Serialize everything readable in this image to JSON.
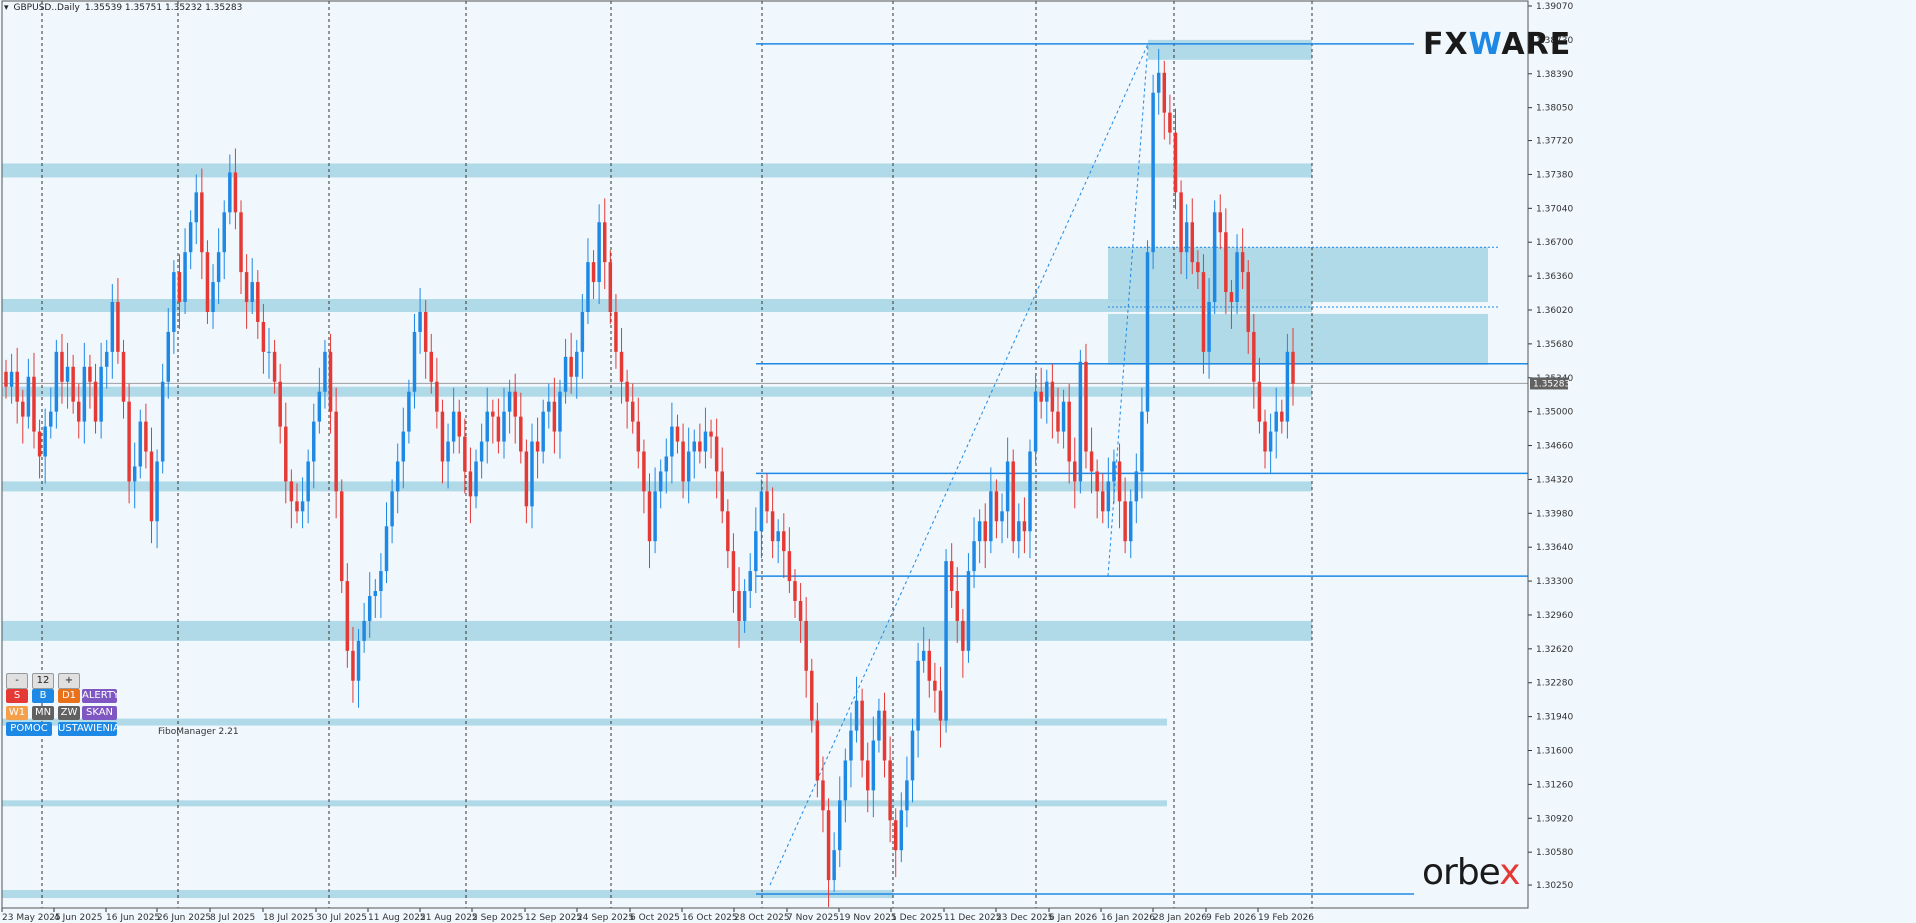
{
  "header": {
    "symbol": "GBPUSD..Daily",
    "ohlc": "1.35539 1.35751 1.35232 1.35283"
  },
  "logos": {
    "fxmag_prefix": "FX",
    "fxmag_mid": "W",
    "fxmag_suffix": "ARE",
    "orbex_prefix": "orbe",
    "orbex_x": "x"
  },
  "panel": {
    "minus": "-",
    "count": "12",
    "plus": "+",
    "row1": [
      "S",
      "B",
      "D1",
      "ALERTY"
    ],
    "row2": [
      "W1",
      "MN",
      "ZW",
      "SKAN"
    ],
    "row3": [
      "POMOC",
      "USTAWIENIA"
    ],
    "fibo_manager": "FiboManager 2.21"
  },
  "colors": {
    "bull": "#1e88e5",
    "bear": "#e53935",
    "zone": "#a9d6e5",
    "panel_red": "#e53935",
    "panel_blue": "#1e88e5",
    "panel_orange": "#e8711a",
    "panel_purple": "#7e57c2",
    "panel_gray": "#616161",
    "panel_light_orange": "#f4a04a"
  },
  "chart_data": {
    "type": "candlestick",
    "ylim": [
      1.3008,
      1.3907
    ],
    "y_ticks": [
      "1.39070",
      "1.38730",
      "1.38390",
      "1.38050",
      "1.37720",
      "1.37380",
      "1.37040",
      "1.36700",
      "1.36360",
      "1.36020",
      "1.35680",
      "1.35340",
      "1.35000",
      "1.34660",
      "1.34320",
      "1.33980",
      "1.33640",
      "1.33300",
      "1.32960",
      "1.32620",
      "1.32280",
      "1.31940",
      "1.31600",
      "1.31260",
      "1.30920",
      "1.30580",
      "1.30250"
    ],
    "x_ticks": [
      "23 May 2025",
      "4 Jun 2025",
      "16 Jun 2025",
      "26 Jun 2025",
      "8 Jul 2025",
      "18 Jul 2025",
      "30 Jul 2025",
      "11 Aug 2025",
      "21 Aug 2025",
      "2 Sep 2025",
      "12 Sep 2025",
      "24 Sep 2025",
      "6 Oct 2025",
      "16 Oct 2025",
      "28 Oct 2025",
      "7 Nov 2025",
      "19 Nov 2025",
      "1 Dec 2025",
      "11 Dec 2025",
      "23 Dec 2025",
      "6 Jan 2026",
      "16 Jan 2026",
      "28 Jan 2026",
      "9 Feb 2026",
      "19 Feb 2026"
    ],
    "current_price": "1.35283",
    "current_price_value": 1.35283,
    "candles_close": [
      1.3525,
      1.354,
      1.351,
      1.3495,
      1.3535,
      1.348,
      1.3455,
      1.3485,
      1.35,
      1.356,
      1.353,
      1.3545,
      1.351,
      1.349,
      1.3545,
      1.353,
      1.349,
      1.3545,
      1.356,
      1.361,
      1.356,
      1.351,
      1.343,
      1.3445,
      1.349,
      1.346,
      1.339,
      1.345,
      1.353,
      1.358,
      1.364,
      1.361,
      1.366,
      1.369,
      1.372,
      1.366,
      1.36,
      1.363,
      1.366,
      1.37,
      1.374,
      1.37,
      1.364,
      1.361,
      1.363,
      1.359,
      1.356,
      1.356,
      1.353,
      1.3485,
      1.343,
      1.341,
      1.34,
      1.341,
      1.345,
      1.349,
      1.352,
      1.356,
      1.35,
      1.342,
      1.333,
      1.326,
      1.323,
      1.327,
      1.329,
      1.3315,
      1.332,
      1.334,
      1.3385,
      1.342,
      1.345,
      1.348,
      1.352,
      1.358,
      1.36,
      1.356,
      1.353,
      1.35,
      1.345,
      1.347,
      1.35,
      1.3475,
      1.344,
      1.3415,
      1.345,
      1.347,
      1.35,
      1.3495,
      1.347,
      1.35,
      1.352,
      1.3495,
      1.346,
      1.3405,
      1.347,
      1.346,
      1.35,
      1.351,
      1.348,
      1.352,
      1.3555,
      1.3535,
      1.356,
      1.36,
      1.365,
      1.363,
      1.369,
      1.365,
      1.36,
      1.356,
      1.353,
      1.351,
      1.349,
      1.346,
      1.342,
      1.337,
      1.342,
      1.344,
      1.3455,
      1.3485,
      1.347,
      1.343,
      1.346,
      1.347,
      1.346,
      1.348,
      1.3475,
      1.344,
      1.34,
      1.336,
      1.332,
      1.329,
      1.332,
      1.334,
      1.338,
      1.342,
      1.34,
      1.337,
      1.338,
      1.336,
      1.333,
      1.331,
      1.329,
      1.324,
      1.319,
      1.313,
      1.31,
      1.303,
      1.306,
      1.311,
      1.315,
      1.318,
      1.321,
      1.315,
      1.312,
      1.317,
      1.32,
      1.315,
      1.309,
      1.306,
      1.31,
      1.313,
      1.318,
      1.325,
      1.326,
      1.323,
      1.322,
      1.319,
      1.335,
      1.332,
      1.329,
      1.326,
      1.334,
      1.337,
      1.339,
      1.337,
      1.342,
      1.339,
      1.34,
      1.345,
      1.337,
      1.339,
      1.338,
      1.346,
      1.352,
      1.351,
      1.353,
      1.35,
      1.348,
      1.351,
      1.345,
      1.343,
      1.355,
      1.346,
      1.344,
      1.342,
      1.34,
      1.343,
      1.345,
      1.341,
      1.337,
      1.341,
      1.344,
      1.35,
      1.366,
      1.382,
      1.384,
      1.38,
      1.378,
      1.372,
      1.366,
      1.369,
      1.365,
      1.364,
      1.356,
      1.361,
      1.37,
      1.368,
      1.362,
      1.361,
      1.366,
      1.364,
      1.358,
      1.353,
      1.349,
      1.346,
      1.348,
      1.35,
      1.349,
      1.356,
      1.3528
    ]
  }
}
